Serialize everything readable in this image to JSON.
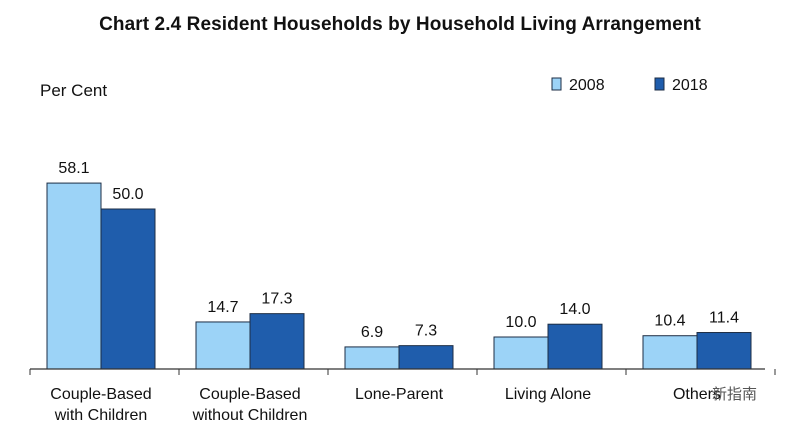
{
  "chart_data": {
    "type": "bar",
    "title": "Chart 2.4  Resident Households by Household Living Arrangement",
    "ylabel": "Per Cent",
    "xlabel": "",
    "categories": [
      [
        "Couple-Based",
        "with Children"
      ],
      [
        "Couple-Based",
        "without Children"
      ],
      [
        "Lone-Parent"
      ],
      [
        "Living Alone"
      ],
      [
        "Others"
      ]
    ],
    "series": [
      {
        "name": "2008",
        "values": [
          58.1,
          14.7,
          6.9,
          10.0,
          10.4
        ],
        "labels": [
          "58.1",
          "14.7",
          "6.9",
          "10.0",
          "10.4"
        ],
        "color": "#9cd3f7"
      },
      {
        "name": "2018",
        "values": [
          50.0,
          17.3,
          7.3,
          14.0,
          11.4
        ],
        "labels": [
          "50.0",
          "17.3",
          "7.3",
          "14.0",
          "11.4"
        ],
        "color": "#1f5dac"
      }
    ],
    "ylim": [
      0,
      65
    ],
    "grid": false,
    "legend_position": "top-right"
  },
  "watermark": "新指南"
}
